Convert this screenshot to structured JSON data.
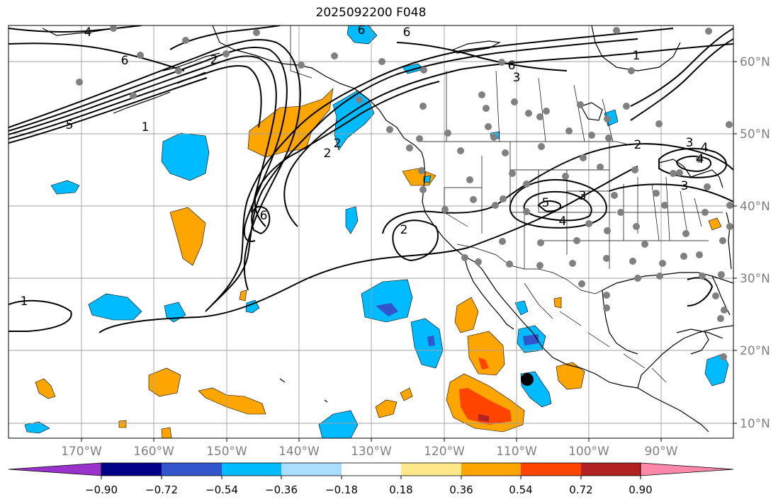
{
  "title": "2025092200 F048",
  "map": {
    "lon_ticks": [
      "170°W",
      "160°W",
      "150°W",
      "140°W",
      "130°W",
      "120°W",
      "110°W",
      "100°W",
      "90°W"
    ],
    "lat_ticks": [
      "60°N",
      "50°N",
      "40°N",
      "30°N",
      "20°N",
      "10°N"
    ],
    "contour_labels": [
      "4",
      "6",
      "6",
      "2",
      "1",
      "5",
      "6",
      "3",
      "6",
      "2",
      "1",
      "1",
      "2",
      "2",
      "6",
      "5",
      "3",
      "4",
      "2",
      "3",
      "4",
      "3",
      "4"
    ]
  },
  "colorbar": {
    "ticks": [
      "−0.90",
      "−0.72",
      "−0.54",
      "−0.36",
      "−0.18",
      "0.18",
      "0.36",
      "0.54",
      "0.72",
      "0.90"
    ],
    "colors": [
      "#9933cc",
      "#000088",
      "#3355cc",
      "#00bbff",
      "#aaddff",
      "#ffffff",
      "#ffe88a",
      "#ffa500",
      "#ff4400",
      "#b22222",
      "#ff88aa"
    ]
  },
  "colors": {
    "cold": "#00bbff",
    "cold_deep": "#3355cc",
    "warm": "#ffa500",
    "warm_deep": "#ff4400",
    "station": "#808080",
    "tick_text": "#808080"
  }
}
